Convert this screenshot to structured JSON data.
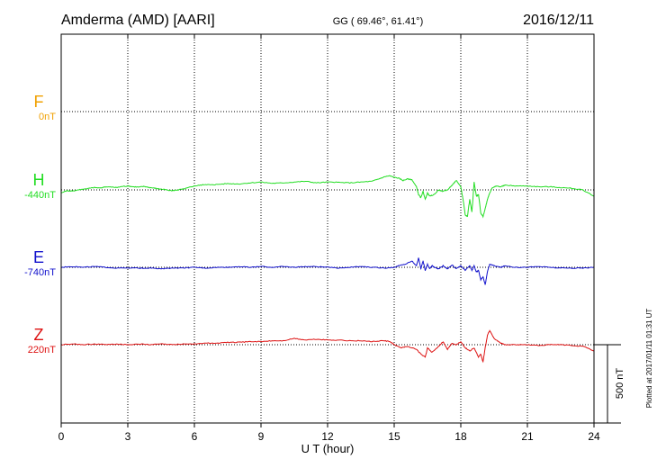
{
  "header": {
    "station": "Amderma (AMD)  [AARI]",
    "coords": "GG ( 69.46°,  61.41°)",
    "date": "2016/12/11"
  },
  "footer": {
    "plotted": "Plotted at 2017/01/11 01:31 UT",
    "scale_label": "500 nT"
  },
  "colors": {
    "F": "#f0a000",
    "H": "#22dd22",
    "E": "#1010cc",
    "Z": "#dd1111",
    "axis": "#000000",
    "grid": "#000000"
  },
  "chart_data": {
    "type": "line",
    "title": "Amderma (AMD)  [AARI]",
    "xlabel": "U T (hour)",
    "ylabel": "",
    "xlim": [
      0,
      24
    ],
    "xticks": [
      0,
      3,
      6,
      9,
      12,
      15,
      18,
      21,
      24
    ],
    "grid": true,
    "scale_bar_nT": 500,
    "series": [
      {
        "name": "F",
        "baseline_label": "0nT",
        "x": [],
        "values": []
      },
      {
        "name": "H",
        "baseline_label": "-440nT",
        "x": [
          0,
          0.25,
          0.5,
          0.75,
          1,
          1.25,
          1.5,
          1.75,
          2,
          2.25,
          2.5,
          2.75,
          3,
          3.25,
          3.5,
          3.75,
          4,
          4.25,
          4.5,
          4.75,
          5,
          5.25,
          5.5,
          5.75,
          6,
          6.25,
          6.5,
          6.75,
          7,
          7.5,
          8,
          8.5,
          9,
          9.5,
          10,
          10.5,
          11,
          11.5,
          12,
          12.5,
          13,
          13.5,
          14,
          14.3,
          14.6,
          14.8,
          15,
          15.2,
          15.4,
          15.6,
          15.8,
          16,
          16.1,
          16.2,
          16.3,
          16.4,
          16.5,
          16.6,
          16.8,
          17,
          17.2,
          17.4,
          17.6,
          17.8,
          18,
          18.1,
          18.2,
          18.3,
          18.4,
          18.5,
          18.6,
          18.7,
          18.8,
          18.9,
          19,
          19.1,
          19.2,
          19.3,
          19.4,
          19.6,
          19.8,
          20,
          20.5,
          21,
          21.5,
          22,
          22.5,
          23,
          23.5,
          24
        ],
        "values": [
          -20,
          -5,
          -8,
          0,
          5,
          10,
          15,
          12,
          20,
          18,
          15,
          22,
          25,
          20,
          18,
          22,
          15,
          10,
          5,
          0,
          -5,
          0,
          5,
          15,
          25,
          30,
          35,
          32,
          35,
          40,
          38,
          45,
          50,
          42,
          45,
          50,
          55,
          45,
          50,
          48,
          45,
          50,
          55,
          70,
          85,
          90,
          80,
          75,
          60,
          70,
          65,
          20,
          -30,
          -50,
          -10,
          -60,
          -20,
          -40,
          -30,
          0,
          -10,
          0,
          30,
          60,
          20,
          -60,
          -160,
          -170,
          -60,
          -140,
          50,
          -40,
          -30,
          -150,
          -170,
          -120,
          -60,
          -20,
          10,
          25,
          20,
          30,
          25,
          25,
          20,
          20,
          15,
          10,
          0,
          -40
        ]
      },
      {
        "name": "E",
        "baseline_label": "-740nT",
        "x": [
          0,
          0.5,
          1,
          1.5,
          2,
          2.5,
          3,
          3.5,
          4,
          4.5,
          5,
          5.5,
          6,
          6.5,
          7,
          7.5,
          8,
          8.5,
          9,
          9.5,
          10,
          10.5,
          11,
          11.5,
          12,
          12.5,
          13,
          13.5,
          14,
          14.5,
          15,
          15.2,
          15.5,
          15.8,
          16,
          16.1,
          16.2,
          16.3,
          16.4,
          16.5,
          16.6,
          16.7,
          16.8,
          17,
          17.2,
          17.4,
          17.6,
          17.8,
          18,
          18.2,
          18.4,
          18.5,
          18.6,
          18.7,
          18.8,
          18.9,
          19,
          19.1,
          19.2,
          19.3,
          19.5,
          19.8,
          20,
          20.5,
          21,
          21.5,
          22,
          22.5,
          23,
          23.5,
          24
        ],
        "values": [
          0,
          5,
          0,
          5,
          0,
          -5,
          -5,
          -5,
          -5,
          -10,
          -5,
          -5,
          0,
          -5,
          0,
          0,
          5,
          0,
          5,
          0,
          5,
          0,
          5,
          5,
          0,
          -5,
          0,
          5,
          0,
          -5,
          0,
          10,
          20,
          40,
          10,
          60,
          -10,
          40,
          -20,
          20,
          -10,
          10,
          0,
          -10,
          10,
          -10,
          15,
          -10,
          10,
          -20,
          10,
          -20,
          10,
          -30,
          -20,
          -80,
          -60,
          -110,
          -30,
          20,
          10,
          0,
          10,
          0,
          0,
          5,
          0,
          -5,
          -5,
          -5,
          0
        ]
      },
      {
        "name": "Z",
        "baseline_label": "220nT",
        "x": [
          0,
          0.5,
          1,
          1.5,
          2,
          2.5,
          3,
          3.5,
          4,
          4.5,
          5,
          5.5,
          6,
          6.5,
          7,
          7.5,
          8,
          8.5,
          9,
          9.5,
          10,
          10.5,
          11,
          11.5,
          12,
          12.5,
          13,
          13.5,
          14,
          14.5,
          14.8,
          15,
          15.3,
          15.6,
          16,
          16.2,
          16.4,
          16.5,
          16.7,
          17,
          17.2,
          17.4,
          17.6,
          17.8,
          18,
          18.2,
          18.4,
          18.6,
          18.8,
          18.9,
          19,
          19.1,
          19.2,
          19.3,
          19.5,
          19.8,
          20,
          20.5,
          21,
          21.5,
          22,
          22.5,
          23,
          23.5,
          24
        ],
        "values": [
          0,
          5,
          0,
          5,
          0,
          5,
          0,
          5,
          0,
          5,
          0,
          5,
          5,
          10,
          10,
          15,
          15,
          20,
          20,
          25,
          25,
          40,
          30,
          35,
          30,
          30,
          25,
          25,
          20,
          25,
          20,
          0,
          -20,
          -10,
          -30,
          -60,
          -80,
          -20,
          -50,
          -10,
          20,
          -30,
          10,
          0,
          20,
          -20,
          -40,
          -20,
          -80,
          -60,
          -110,
          -20,
          60,
          90,
          40,
          10,
          0,
          0,
          0,
          -5,
          0,
          0,
          -5,
          -10,
          -40
        ]
      }
    ]
  }
}
